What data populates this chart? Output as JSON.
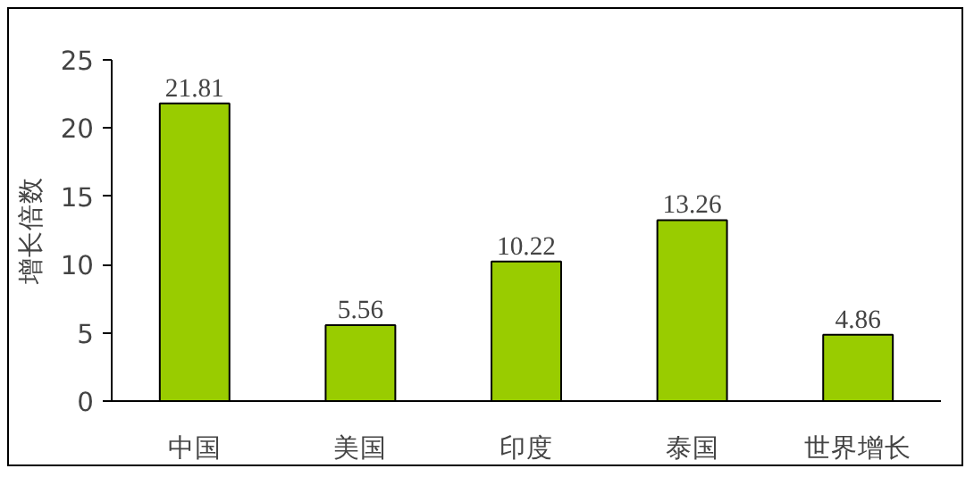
{
  "chart_data": {
    "type": "bar",
    "ylabel": "增长倍数",
    "categories": [
      "中国",
      "美国",
      "印度",
      "泰国",
      "世界增长"
    ],
    "values": [
      21.81,
      5.56,
      10.22,
      13.26,
      4.86
    ],
    "color": "#99cc00",
    "data_labels": true,
    "ylim": [
      0,
      25
    ],
    "yticks": [
      0,
      5,
      10,
      15,
      20,
      25
    ],
    "grid": false
  }
}
